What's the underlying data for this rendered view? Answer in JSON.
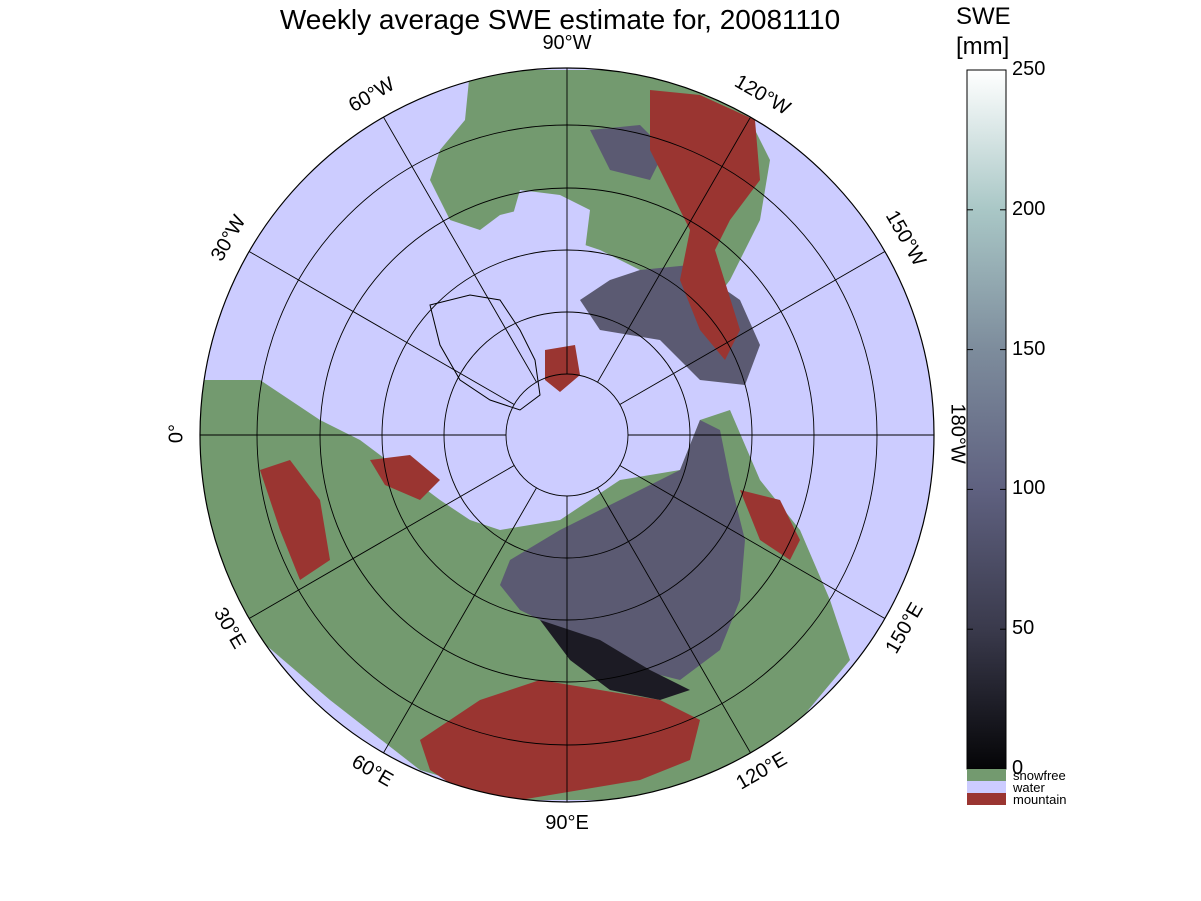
{
  "title": "Weekly average SWE estimate for, 20081110",
  "colorbar": {
    "title_line1": "SWE",
    "title_line2": "[mm]",
    "ticks": [
      "0",
      "50",
      "100",
      "150",
      "200",
      "250"
    ],
    "range": [
      0,
      250
    ],
    "categories": [
      {
        "label": "snowfree",
        "color": "#739a6f"
      },
      {
        "label": "water",
        "color": "#ccccff"
      },
      {
        "label": "mountain",
        "color": "#9a3531"
      }
    ]
  },
  "map": {
    "projection": "north polar stereographic",
    "longitude_labels": [
      "90°W",
      "120°W",
      "150°W",
      "180°W",
      "150°E",
      "120°E",
      "90°E",
      "60°E",
      "30°E",
      "0°",
      "30°W",
      "60°W"
    ],
    "colors": {
      "ocean": "#ccccff",
      "land": "#739a6f",
      "mountain": "#9a3531",
      "snow": "#5b5a72",
      "deep_snow": "#1c1b24"
    }
  }
}
